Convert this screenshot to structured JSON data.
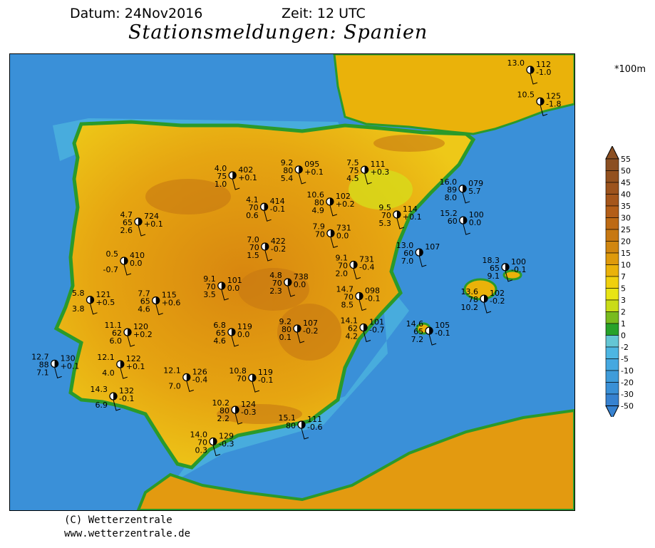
{
  "header": {
    "date_label": "Datum:",
    "date": "24Nov2016",
    "time_label": "Zeit:",
    "time": "12",
    "time_zone": "UTC"
  },
  "title": "Stationsmeldungen: Spanien",
  "legend": {
    "unit": "*100m",
    "levels": [
      "55",
      "50",
      "45",
      "40",
      "35",
      "30",
      "25",
      "20",
      "15",
      "10",
      "7",
      "5",
      "3",
      "2",
      "1",
      "0",
      "-2",
      "-5",
      "-10",
      "-20",
      "-30",
      "-50"
    ],
    "colors": [
      "#8b4f22",
      "#93511f",
      "#9c531d",
      "#a5561b",
      "#b35e18",
      "#bd6a14",
      "#c77812",
      "#d08610",
      "#de9a0c",
      "#eab20a",
      "#f0d00e",
      "#e8e414",
      "#c9dc18",
      "#78bb1e",
      "#27a22a",
      "#64c6d4",
      "#4db6e2",
      "#45a8e0",
      "#3f9cda",
      "#3a90d6",
      "#3782d0"
    ]
  },
  "map": {
    "sea_color": "#3a90d8",
    "land_low": "#f0c418",
    "land_mid": "#e39a10",
    "land_high": "#c97312"
  },
  "stations": [
    {
      "t": "4.0",
      "h": "75",
      "d": "1.0",
      "p": "402",
      "tend": "+0.1"
    },
    {
      "t": "9.2",
      "h": "80",
      "d": "5.4",
      "p": "095",
      "tend": "+0.1"
    },
    {
      "t": "10.6",
      "h": "80",
      "d": "4.9",
      "p": "102",
      "tend": "+0.2"
    },
    {
      "t": "7.5",
      "h": "75",
      "d": "4.5",
      "p": "111",
      "tend": "+0.3"
    },
    {
      "t": "4.1",
      "h": "70",
      "d": "0.6",
      "p": "414",
      "tend": "-0.1"
    },
    {
      "t": "7.9",
      "h": "70",
      "d": "",
      "p": "731",
      "tend": "0.0"
    },
    {
      "t": "7.0",
      "h": "70",
      "d": "1.5",
      "p": "422",
      "tend": "-0.2"
    },
    {
      "t": "9.1",
      "h": "70",
      "d": "2.0",
      "p": "731",
      "tend": "-0.4"
    },
    {
      "t": "4.8",
      "h": "70",
      "d": "2.3",
      "p": "738",
      "tend": "0.0"
    },
    {
      "t": "14.7",
      "h": "70",
      "d": "8.5",
      "p": "098",
      "tend": "-0.1"
    },
    {
      "t": "13.0",
      "h": "60",
      "d": "7.0",
      "p": "107",
      "tend": ""
    },
    {
      "t": "9.1",
      "h": "70",
      "d": "3.5",
      "p": "101",
      "tend": "0.0"
    },
    {
      "t": "9.2",
      "h": "80",
      "d": "0.1",
      "p": "107",
      "tend": "-0.2"
    },
    {
      "t": "14.1",
      "h": "62",
      "d": "4.2",
      "p": "101",
      "tend": "-0.7"
    },
    {
      "t": "4.7",
      "h": "65",
      "d": "2.6",
      "p": "724",
      "tend": "+0.1"
    },
    {
      "t": "0.5",
      "h": "",
      "d": "-0.7",
      "p": "410",
      "tend": "0.0"
    },
    {
      "t": "5.8",
      "h": "",
      "d": "3.8",
      "p": "121",
      "tend": "+0.5"
    },
    {
      "t": "7.7",
      "h": "65",
      "d": "4.6",
      "p": "115",
      "tend": "+0.6"
    },
    {
      "t": "11.1",
      "h": "62",
      "d": "6.0",
      "p": "120",
      "tend": "+0.2"
    },
    {
      "t": "6.8",
      "h": "65",
      "d": "4.6",
      "p": "119",
      "tend": "0.0"
    },
    {
      "t": "10.8",
      "h": "70",
      "d": "",
      "p": "119",
      "tend": "-0.1"
    },
    {
      "t": "10.2",
      "h": "80",
      "d": "2.2",
      "p": "124",
      "tend": "-0.3"
    },
    {
      "t": "14.0",
      "h": "70",
      "d": "0.3",
      "p": "129",
      "tend": "-0.3"
    },
    {
      "t": "14.6",
      "h": "65",
      "d": "7.2",
      "p": "105",
      "tend": "-0.1"
    },
    {
      "t": "13.6",
      "h": "78",
      "d": "10.2",
      "p": "102",
      "tend": "-0.2"
    },
    {
      "t": "18.3",
      "h": "65",
      "d": "9.1",
      "p": "100",
      "tend": "-0.1"
    },
    {
      "t": "15.2",
      "h": "60",
      "d": "",
      "p": "100",
      "tend": "0.0"
    },
    {
      "t": "16.0",
      "h": "89",
      "d": "8.0",
      "p": "079",
      "tend": "5.7"
    },
    {
      "t": "9.5",
      "h": "70",
      "d": "5.3",
      "p": "114",
      "tend": "+0.1"
    },
    {
      "t": "12.7",
      "h": "88",
      "d": "7.1",
      "p": "130",
      "tend": "+0.1"
    },
    {
      "t": "12.1",
      "h": "",
      "d": "4.0",
      "p": "122",
      "tend": "+0.1"
    },
    {
      "t": "14.3",
      "h": "",
      "d": "6.9",
      "p": "132",
      "tend": "-0.1"
    },
    {
      "t": "15.1",
      "h": "80",
      "d": "",
      "p": "111",
      "tend": "-0.6"
    },
    {
      "t": "12.1",
      "h": "",
      "d": "7.0",
      "p": "126",
      "tend": "-0.4"
    },
    {
      "t": "10.5",
      "h": "",
      "d": "",
      "p": "125",
      "tend": "-1.8"
    },
    {
      "t": "13.0",
      "h": "",
      "d": "",
      "p": "112",
      "tend": "-1.0"
    }
  ],
  "credit": {
    "line1": "(C) Wetterzentrale",
    "line2": "www.wetterzentrale.de"
  }
}
